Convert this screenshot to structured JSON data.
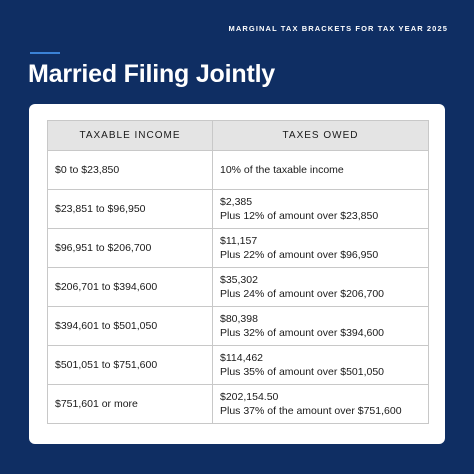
{
  "header": {
    "kicker": "MARGINAL TAX BRACKETS FOR TAX YEAR 2025",
    "title": "Married Filing Jointly"
  },
  "table": {
    "columns": [
      "TAXABLE INCOME",
      "TAXES OWED"
    ],
    "rows": [
      {
        "income": "$0 to $23,850",
        "owed_line1": "10% of the taxable income",
        "owed_line2": ""
      },
      {
        "income": "$23,851 to $96,950",
        "owed_line1": "$2,385",
        "owed_line2": "Plus 12% of amount over $23,850"
      },
      {
        "income": "$96,951 to $206,700",
        "owed_line1": "$11,157",
        "owed_line2": "Plus 22% of amount over $96,950"
      },
      {
        "income": "$206,701 to $394,600",
        "owed_line1": "$35,302",
        "owed_line2": "Plus 24% of amount over $206,700"
      },
      {
        "income": "$394,601 to $501,050",
        "owed_line1": "$80,398",
        "owed_line2": "Plus 32% of amount over $394,600"
      },
      {
        "income": "$501,051 to $751,600",
        "owed_line1": "$114,462",
        "owed_line2": "Plus 35% of amount over $501,050"
      },
      {
        "income": "$751,601 or more",
        "owed_line1": "$202,154.50",
        "owed_line2": "Plus 37% of the amount over $751,600"
      }
    ]
  },
  "colors": {
    "background": "#0f2e63",
    "accent": "#3b82d6",
    "header_row": "#e4e4e4"
  }
}
